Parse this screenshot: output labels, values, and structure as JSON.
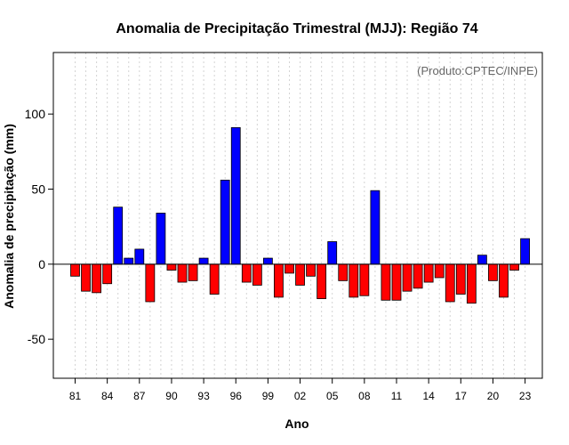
{
  "chart_data": {
    "type": "bar",
    "title": "Anomalia de Precipitação Trimestral (MJJ): Região 74",
    "credit": "(Produto:CPTEC/INPE)",
    "xlabel": "Ano",
    "ylabel": "Anomalia de precipitação (mm)",
    "ylim": [
      -76,
      141
    ],
    "yticks": [
      -50,
      0,
      50,
      100
    ],
    "ytick_labels": [
      "-50",
      "0",
      "50",
      "100"
    ],
    "xtick_labels": [
      "81",
      "84",
      "87",
      "90",
      "93",
      "96",
      "99",
      "02",
      "05",
      "08",
      "11",
      "14",
      "17",
      "20",
      "23"
    ],
    "xtick_years": [
      1981,
      1984,
      1987,
      1990,
      1993,
      1996,
      1999,
      2002,
      2005,
      2008,
      2011,
      2014,
      2017,
      2020,
      2023
    ],
    "positive_color": "#0000ff",
    "negative_color": "#ff0000",
    "years": [
      1981,
      1982,
      1983,
      1984,
      1985,
      1986,
      1987,
      1988,
      1989,
      1990,
      1991,
      1992,
      1993,
      1994,
      1995,
      1996,
      1997,
      1998,
      1999,
      2000,
      2001,
      2002,
      2003,
      2004,
      2005,
      2006,
      2007,
      2008,
      2009,
      2010,
      2011,
      2012,
      2013,
      2014,
      2015,
      2016,
      2017,
      2018,
      2019,
      2020,
      2021,
      2022,
      2023
    ],
    "values": [
      -8,
      -18,
      -19,
      -13,
      38,
      4,
      10,
      -25,
      34,
      -4,
      -12,
      -11,
      4,
      -20,
      56,
      91,
      -12,
      -14,
      4,
      -22,
      -6,
      -14,
      -8,
      -23,
      15,
      -11,
      -22,
      -21,
      49,
      -24,
      -24,
      -18,
      -16,
      -12,
      -9,
      -25,
      -20,
      -26,
      6,
      -11,
      -22,
      -4,
      17
    ]
  }
}
